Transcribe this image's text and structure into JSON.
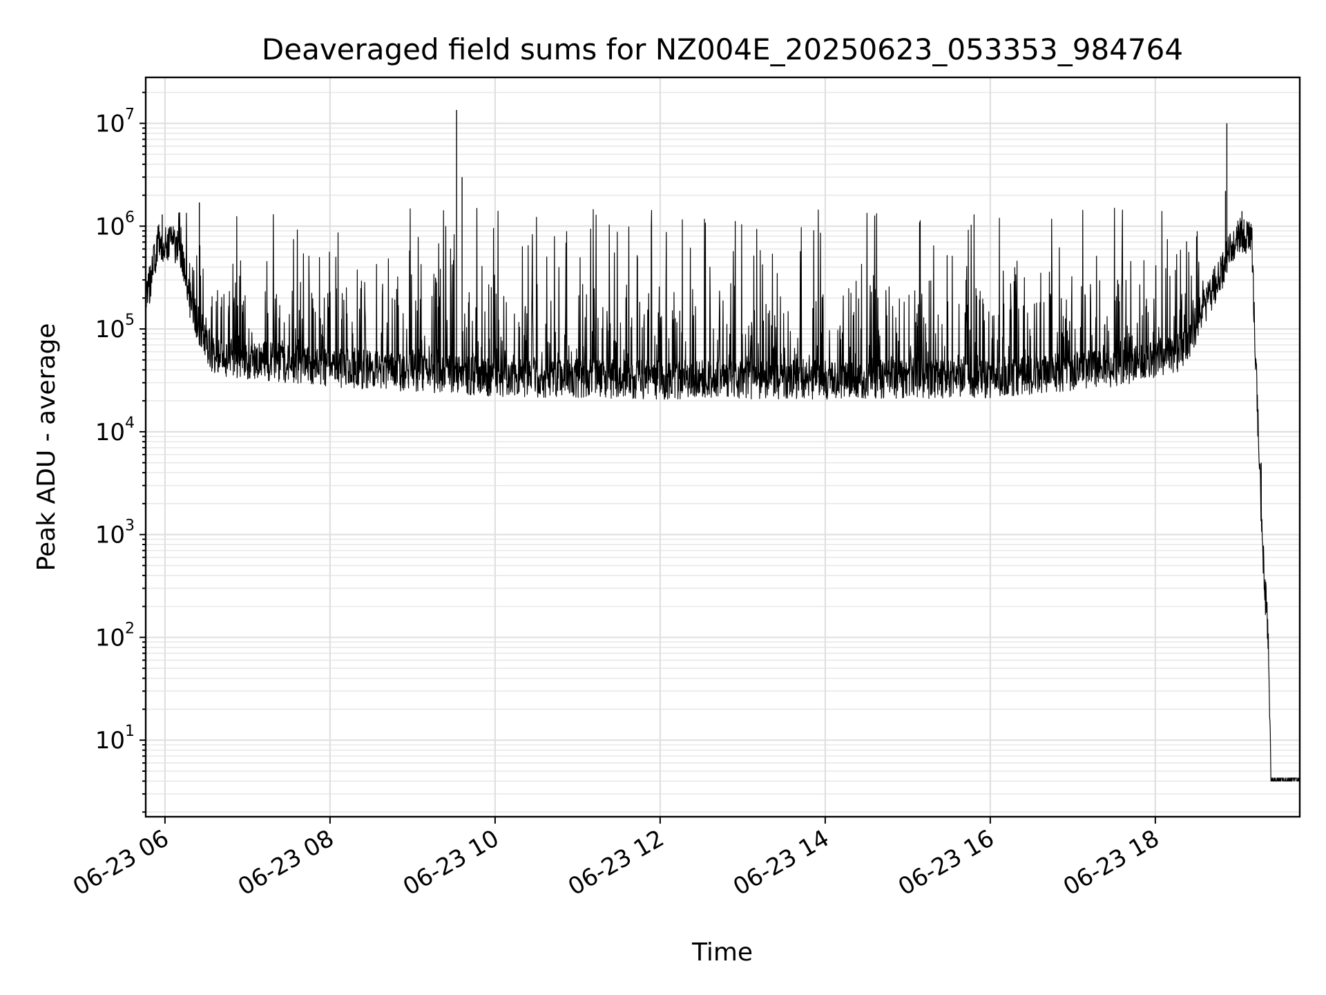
{
  "chart_data": {
    "type": "line",
    "title": "Deaveraged field sums for NZ004E_20250623_053353_984764",
    "xlabel": "Time",
    "ylabel": "Peak ADU - average",
    "yscale": "log",
    "grid": true,
    "xlim": [
      "2025-06-23 05:46",
      "2025-06-23 19:45"
    ],
    "ylim": [
      1.8,
      28000000
    ],
    "x_ticks": [
      {
        "label": "06-23 06",
        "time": "2025-06-23 06:00"
      },
      {
        "label": "06-23 08",
        "time": "2025-06-23 08:00"
      },
      {
        "label": "06-23 10",
        "time": "2025-06-23 10:00"
      },
      {
        "label": "06-23 12",
        "time": "2025-06-23 12:00"
      },
      {
        "label": "06-23 14",
        "time": "2025-06-23 14:00"
      },
      {
        "label": "06-23 16",
        "time": "2025-06-23 16:00"
      },
      {
        "label": "06-23 18",
        "time": "2025-06-23 18:00"
      }
    ],
    "y_ticks": [
      {
        "base": "10",
        "exp": "1",
        "value": 10
      },
      {
        "base": "10",
        "exp": "2",
        "value": 100
      },
      {
        "base": "10",
        "exp": "3",
        "value": 1000
      },
      {
        "base": "10",
        "exp": "4",
        "value": 10000
      },
      {
        "base": "10",
        "exp": "5",
        "value": 100000
      },
      {
        "base": "10",
        "exp": "6",
        "value": 1000000
      },
      {
        "base": "10",
        "exp": "7",
        "value": 10000000
      }
    ],
    "series": [
      {
        "color": "#000000",
        "baseline_profile": [
          [
            "2025-06-23 05:46",
            180000
          ],
          [
            "2025-06-23 05:55",
            700000
          ],
          [
            "2025-06-23 06:10",
            650000
          ],
          [
            "2025-06-23 06:20",
            150000
          ],
          [
            "2025-06-23 06:35",
            55000
          ],
          [
            "2025-06-23 07:00",
            50000
          ],
          [
            "2025-06-23 08:00",
            42000
          ],
          [
            "2025-06-23 09:00",
            38000
          ],
          [
            "2025-06-23 10:00",
            34000
          ],
          [
            "2025-06-23 12:00",
            32000
          ],
          [
            "2025-06-23 14:00",
            32000
          ],
          [
            "2025-06-23 16:00",
            33000
          ],
          [
            "2025-06-23 17:30",
            42000
          ],
          [
            "2025-06-23 18:20",
            60000
          ],
          [
            "2025-06-23 18:45",
            300000
          ],
          [
            "2025-06-23 19:00",
            800000
          ],
          [
            "2025-06-23 19:10",
            800000
          ],
          [
            "2025-06-23 19:14",
            20000
          ],
          [
            "2025-06-23 19:18",
            700
          ],
          [
            "2025-06-23 19:22",
            100
          ],
          [
            "2025-06-23 19:24",
            4
          ],
          [
            "2025-06-23 19:45",
            4
          ]
        ],
        "spike_ceiling": 1500000,
        "spike_window": [
          "2025-06-23 06:10",
          "2025-06-23 18:35"
        ],
        "notable_spikes": [
          [
            "2025-06-23 09:32",
            13500000
          ],
          [
            "2025-06-23 09:36",
            3000000
          ],
          [
            "2025-06-23 05:58",
            1300000
          ],
          [
            "2025-06-23 06:25",
            1700000
          ],
          [
            "2025-06-23 18:51",
            2200000
          ],
          [
            "2025-06-23 18:52",
            10000000
          ],
          [
            "2025-06-23 19:03",
            1400000
          ],
          [
            "2025-06-23 19:17",
            5000
          ]
        ]
      }
    ]
  }
}
